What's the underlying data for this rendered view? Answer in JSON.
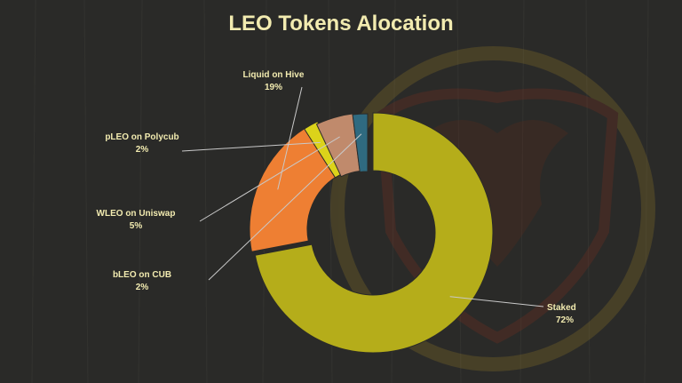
{
  "chart_data": {
    "type": "pie",
    "title": "LEO Tokens Alocation",
    "categories": [
      "Staked",
      "Liquid on Hive",
      "pLEO on Polycub",
      "WLEO on Uniswap",
      "bLEO on CUB"
    ],
    "values": [
      72,
      19,
      2,
      5,
      2
    ],
    "labels": [
      "72%",
      "19%",
      "2%",
      "5%",
      "2%"
    ],
    "colors": [
      "#b5ad1a",
      "#ee7f33",
      "#dcd31a",
      "#c08a6c",
      "#2f6a80"
    ],
    "hole": "donut",
    "legend": "none"
  },
  "theme": {
    "background": "#2a2a28",
    "title_color": "#f2ebb0",
    "label_color": "#f2ebb0",
    "leader_color": "#c9c9c9"
  }
}
